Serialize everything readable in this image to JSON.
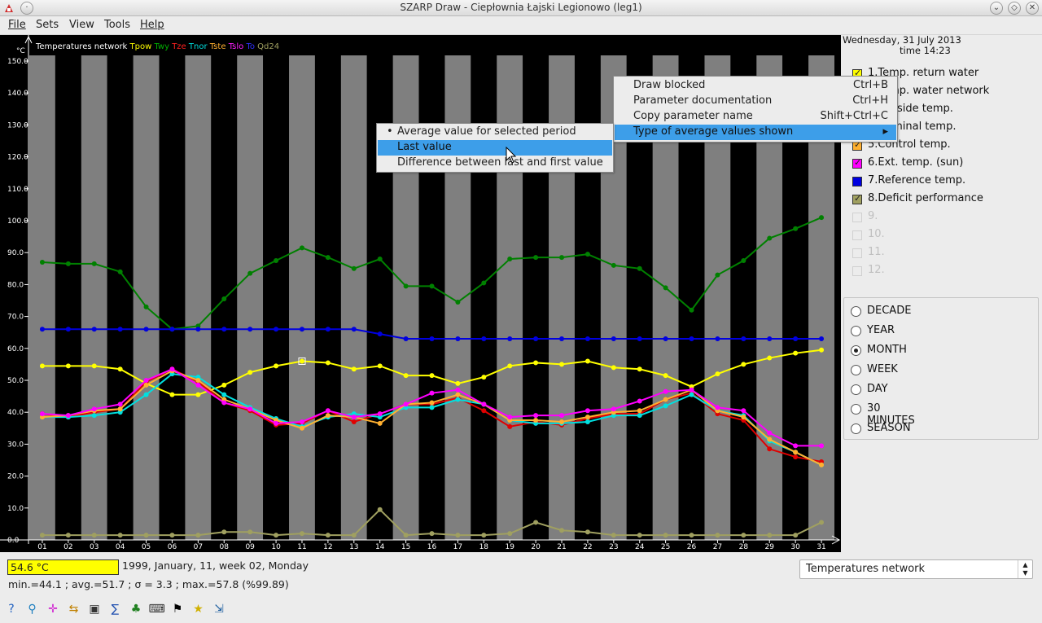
{
  "window": {
    "title": "SZARP Draw - Ciepłownia Łajski Legionowo (leg1)"
  },
  "menu": [
    "File",
    "Sets",
    "View",
    "Tools",
    "Help"
  ],
  "plot": {
    "header_title": "Temperatures network",
    "header_params": [
      {
        "code": "Tpow",
        "color": "#ffff00"
      },
      {
        "code": "Twy",
        "color": "#00b000"
      },
      {
        "code": "Tze",
        "color": "#ff2020"
      },
      {
        "code": "Tnor",
        "color": "#00e0e0"
      },
      {
        "code": "Tste",
        "color": "#ffb030"
      },
      {
        "code": "Tslo",
        "color": "#ff20ff"
      },
      {
        "code": "To",
        "color": "#3030ff"
      },
      {
        "code": "Qd24",
        "color": "#a0a060"
      }
    ],
    "unit": "°C"
  },
  "chart_data": {
    "type": "line",
    "x": [
      "01",
      "02",
      "03",
      "04",
      "05",
      "06",
      "07",
      "08",
      "09",
      "10",
      "11",
      "12",
      "13",
      "14",
      "15",
      "16",
      "17",
      "18",
      "19",
      "20",
      "21",
      "22",
      "23",
      "24",
      "25",
      "26",
      "27",
      "28",
      "29",
      "30",
      "31"
    ],
    "ylim": [
      0,
      150
    ],
    "yticks": [
      "150.0",
      "140.0",
      "130.0",
      "120.0",
      "110.0",
      "100.0",
      "90.0",
      "80.0",
      "70.0",
      "60.0",
      "50.0",
      "40.0",
      "30.0",
      "20.0",
      "10.0",
      "0.0"
    ],
    "series": [
      {
        "name": "Twy",
        "color": "#008000",
        "values": [
          87.0,
          86.5,
          86.5,
          84.0,
          73.0,
          66.0,
          67.0,
          75.5,
          83.5,
          87.5,
          91.5,
          88.5,
          85.0,
          88.0,
          79.5,
          79.5,
          74.5,
          80.5,
          88.0,
          88.5,
          88.5,
          89.5,
          86.0,
          85.0,
          79.0,
          72.0,
          83.0,
          87.5,
          94.5,
          97.5,
          101.0
        ]
      },
      {
        "name": "To",
        "color": "#0000e0",
        "values": [
          66.0,
          66.0,
          66.0,
          66.0,
          66.0,
          66.0,
          66.0,
          66.0,
          66.0,
          66.0,
          66.0,
          66.0,
          66.0,
          64.5,
          63.0,
          63.0,
          63.0,
          63.0,
          63.0,
          63.0,
          63.0,
          63.0,
          63.0,
          63.0,
          63.0,
          63.0,
          63.0,
          63.0,
          63.0,
          63.0,
          63.0
        ]
      },
      {
        "name": "Tpow",
        "color": "#ffff00",
        "values": [
          54.5,
          54.5,
          54.5,
          53.5,
          49.0,
          45.5,
          45.5,
          48.5,
          52.5,
          54.5,
          56.0,
          55.5,
          53.5,
          54.5,
          51.5,
          51.5,
          49.0,
          51.0,
          54.5,
          55.5,
          55.0,
          56.0,
          54.0,
          53.5,
          51.5,
          48.0,
          52.0,
          55.0,
          57.0,
          58.5,
          59.5
        ]
      },
      {
        "name": "Tze",
        "color": "#e00000",
        "values": [
          39.5,
          38.5,
          40.0,
          41.0,
          49.5,
          53.5,
          49.5,
          43.0,
          40.5,
          36.0,
          36.5,
          40.5,
          37.0,
          39.5,
          42.5,
          42.5,
          44.5,
          40.5,
          35.5,
          37.0,
          36.0,
          38.0,
          39.5,
          39.5,
          44.0,
          46.0,
          39.5,
          37.5,
          28.5,
          26.0,
          24.5
        ]
      },
      {
        "name": "Tnor",
        "color": "#00e0e0",
        "values": [
          38.5,
          38.5,
          39.0,
          40.0,
          45.5,
          52.0,
          51.0,
          45.5,
          41.5,
          38.0,
          35.5,
          38.5,
          39.5,
          38.5,
          41.5,
          41.5,
          44.0,
          42.5,
          37.5,
          36.5,
          36.5,
          37.0,
          39.0,
          39.0,
          42.0,
          45.5,
          40.5,
          39.0,
          31.0,
          27.5,
          23.5
        ]
      },
      {
        "name": "Tste",
        "color": "#ffb030",
        "values": [
          38.5,
          39.0,
          40.5,
          41.0,
          48.5,
          53.0,
          50.0,
          44.0,
          41.0,
          37.5,
          35.0,
          39.0,
          38.5,
          36.5,
          42.5,
          43.0,
          45.5,
          42.5,
          37.5,
          37.5,
          37.0,
          38.5,
          40.0,
          40.5,
          44.0,
          47.0,
          40.5,
          38.5,
          31.5,
          27.5,
          23.5
        ]
      },
      {
        "name": "Tslo",
        "color": "#ff00ff",
        "values": [
          39.5,
          39.0,
          41.0,
          42.5,
          50.0,
          53.5,
          48.5,
          43.0,
          41.0,
          36.5,
          37.0,
          40.5,
          38.5,
          39.5,
          42.5,
          46.0,
          47.0,
          42.5,
          38.5,
          39.0,
          39.0,
          40.5,
          41.0,
          43.5,
          46.5,
          47.0,
          41.5,
          40.5,
          33.5,
          29.5,
          29.5
        ]
      },
      {
        "name": "Qd24",
        "color": "#a0a060",
        "values": [
          1.5,
          1.5,
          1.5,
          1.5,
          1.5,
          1.5,
          1.5,
          2.5,
          2.5,
          1.5,
          2.0,
          1.5,
          1.5,
          9.5,
          1.5,
          2.0,
          1.5,
          1.5,
          2.0,
          5.5,
          3.0,
          2.5,
          1.5,
          1.5,
          1.5,
          1.5,
          1.5,
          1.5,
          1.5,
          1.5,
          5.5
        ]
      }
    ],
    "selected_index": 10
  },
  "info": {
    "date": "Wednesday, 31 July 2013",
    "time": "time 14:23"
  },
  "params": [
    {
      "label": "1.Temp. return water",
      "color": "#ffff00",
      "enabled": true
    },
    {
      "label": "2.Temp. water network",
      "color": "#00b000",
      "enabled": true
    },
    {
      "label": "3.Outside temp.",
      "color": "#ff2020",
      "enabled": true
    },
    {
      "label": "4.Nominal temp.",
      "color": "#00e0e0",
      "enabled": true
    },
    {
      "label": "5.Control temp.",
      "color": "#ffb030",
      "enabled": true
    },
    {
      "label": "6.Ext. temp. (sun)",
      "color": "#ff00ff",
      "enabled": true
    },
    {
      "label": "7.Reference temp.",
      "color": "#0000e0",
      "enabled": true
    },
    {
      "label": "8.Deficit performance",
      "color": "#a0a060",
      "enabled": true
    },
    {
      "label": "9.",
      "color": "#ececec",
      "enabled": false
    },
    {
      "label": "10.",
      "color": "#ececec",
      "enabled": false
    },
    {
      "label": "11.",
      "color": "#ececec",
      "enabled": false
    },
    {
      "label": "12.",
      "color": "#ececec",
      "enabled": false
    }
  ],
  "periods": [
    {
      "label": "DECADE",
      "selected": false
    },
    {
      "label": "YEAR",
      "selected": false
    },
    {
      "label": "MONTH",
      "selected": true
    },
    {
      "label": "WEEK",
      "selected": false
    },
    {
      "label": "DAY",
      "selected": false
    },
    {
      "label": "30 MINUTES",
      "selected": false
    },
    {
      "label": "SEASON",
      "selected": false
    }
  ],
  "status": {
    "value": "54.6 °C",
    "date": "1999, January, 11, week 02, Monday",
    "stats": "min.=44.1 ; avg.=51.7 ; σ = 3.3 ; max.=57.8  (%99.89)"
  },
  "set_selector": {
    "value": "Temperatures network"
  },
  "context_menu": [
    {
      "label": "Draw blocked",
      "shortcut": "Ctrl+B"
    },
    {
      "label": "Parameter documentation",
      "shortcut": "Ctrl+H"
    },
    {
      "label": "Copy parameter name",
      "shortcut": "Shift+Ctrl+C"
    },
    {
      "label": "Type of average values shown",
      "shortcut": "▸"
    }
  ],
  "submenu": [
    {
      "label": "Average value for selected period",
      "checked": true
    },
    {
      "label": "Last value",
      "checked": false
    },
    {
      "label": "Difference between last and first value",
      "checked": false
    }
  ],
  "toolbar_icons": [
    "help-icon",
    "zoom-icon",
    "crosshair-icon",
    "split-icon",
    "filter-icon",
    "summary-icon",
    "palm-icon",
    "keyboard-icon",
    "checkered-flag-icon",
    "star-icon",
    "export-icon"
  ]
}
